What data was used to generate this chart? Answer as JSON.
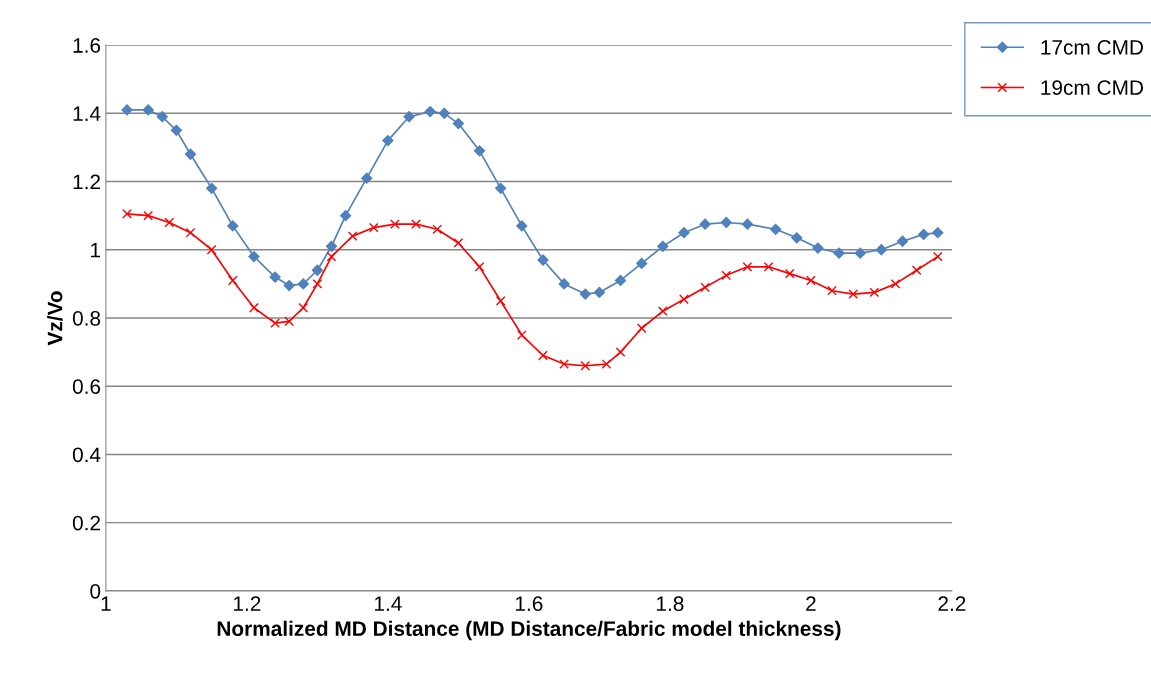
{
  "chart_data": {
    "type": "line",
    "xlabel": "Normalized MD Distance (MD Distance/Fabric model thickness)",
    "ylabel": "Vz/Vo",
    "xlim": [
      1,
      2.2
    ],
    "xticks": [
      1,
      1.2,
      1.4,
      1.6,
      1.8,
      2,
      2.2
    ],
    "ylim": [
      0,
      1.6
    ],
    "yticks": [
      0,
      0.2,
      0.4,
      0.6,
      0.8,
      1,
      1.2,
      1.4,
      1.6
    ],
    "grid": "y",
    "legend": "top right",
    "series": [
      {
        "name": "17cm CMD",
        "color": "#4f81bd",
        "marker": "diamond",
        "x": [
          1.03,
          1.06,
          1.08,
          1.1,
          1.12,
          1.15,
          1.18,
          1.21,
          1.24,
          1.26,
          1.28,
          1.3,
          1.32,
          1.34,
          1.37,
          1.4,
          1.43,
          1.46,
          1.48,
          1.5,
          1.53,
          1.56,
          1.59,
          1.62,
          1.65,
          1.68,
          1.7,
          1.73,
          1.76,
          1.79,
          1.82,
          1.85,
          1.88,
          1.91,
          1.95,
          1.98,
          2.01,
          2.04,
          2.07,
          2.1,
          2.13,
          2.16,
          2.18
        ],
        "values": [
          1.41,
          1.41,
          1.39,
          1.35,
          1.28,
          1.18,
          1.07,
          0.98,
          0.92,
          0.895,
          0.9,
          0.94,
          1.01,
          1.1,
          1.21,
          1.32,
          1.39,
          1.405,
          1.4,
          1.37,
          1.29,
          1.18,
          1.07,
          0.97,
          0.9,
          0.87,
          0.875,
          0.91,
          0.96,
          1.01,
          1.05,
          1.075,
          1.08,
          1.075,
          1.06,
          1.035,
          1.005,
          0.99,
          0.99,
          1.0,
          1.025,
          1.045,
          1.05
        ]
      },
      {
        "name": "19cm CMD",
        "color": "#ff0000",
        "marker": "cross",
        "x": [
          1.03,
          1.06,
          1.09,
          1.12,
          1.15,
          1.18,
          1.21,
          1.24,
          1.26,
          1.28,
          1.3,
          1.32,
          1.35,
          1.38,
          1.41,
          1.44,
          1.47,
          1.5,
          1.53,
          1.56,
          1.59,
          1.62,
          1.65,
          1.68,
          1.71,
          1.73,
          1.76,
          1.79,
          1.82,
          1.85,
          1.88,
          1.91,
          1.94,
          1.97,
          2.0,
          2.03,
          2.06,
          2.09,
          2.12,
          2.15,
          2.18
        ],
        "values": [
          1.105,
          1.1,
          1.08,
          1.05,
          1.0,
          0.91,
          0.83,
          0.785,
          0.79,
          0.83,
          0.9,
          0.98,
          1.04,
          1.065,
          1.075,
          1.075,
          1.06,
          1.02,
          0.95,
          0.85,
          0.75,
          0.69,
          0.665,
          0.66,
          0.665,
          0.7,
          0.77,
          0.82,
          0.855,
          0.89,
          0.925,
          0.95,
          0.95,
          0.93,
          0.91,
          0.88,
          0.87,
          0.875,
          0.9,
          0.94,
          0.98
        ]
      }
    ]
  }
}
